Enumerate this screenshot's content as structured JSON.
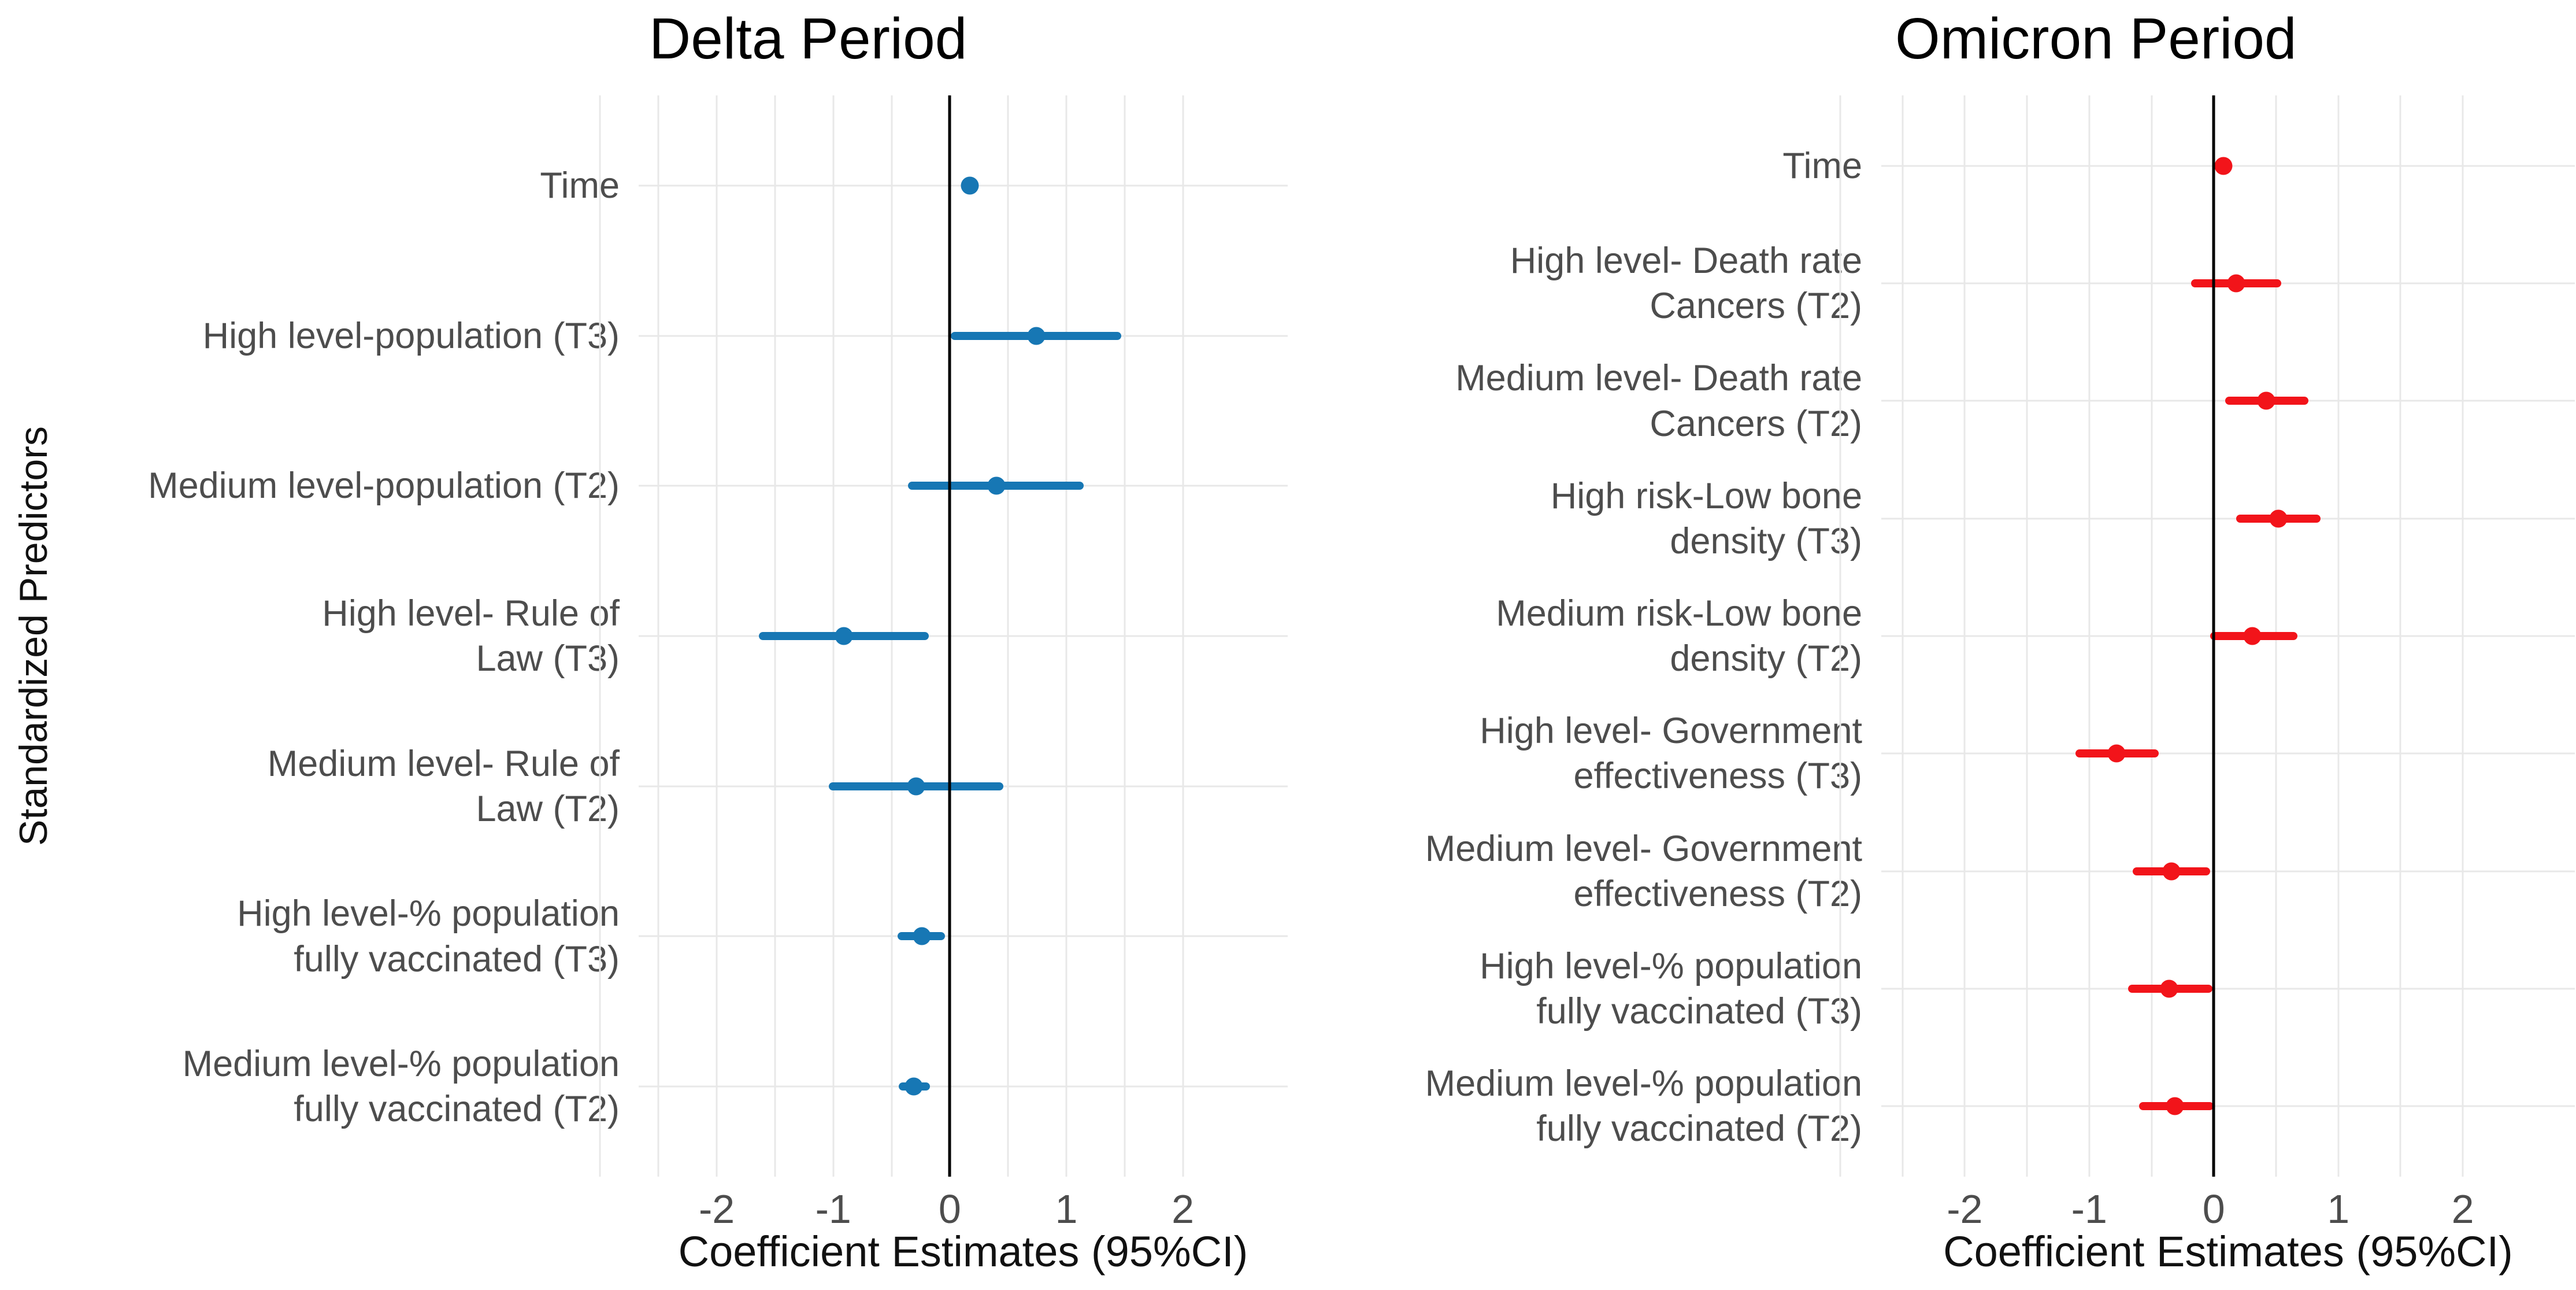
{
  "figure": {
    "background": "#ffffff"
  },
  "style": {
    "grid_color": "#e8e8e8",
    "zero_line_color": "#000000",
    "label_color": "#4d4d4d",
    "tick_color": "#4d4d4d",
    "title_color": "#000000",
    "delta_point_color": "#1777b4",
    "omicron_point_color": "#f2141a"
  },
  "chart_data": [
    {
      "type": "scatter",
      "variant": "forest-plot",
      "title": "Delta Period",
      "xlabel": "Coefficient Estimates (95%CI)",
      "ylabel": "Standardized Predictors",
      "xlim": [
        -2.67,
        2.9
      ],
      "xticks": [
        -2,
        -1,
        0,
        1,
        2
      ],
      "minor_grid_step": 0.5,
      "grid": true,
      "vline_x": 0,
      "legend": "none",
      "point_color": "#1777b4",
      "rows": [
        {
          "label": "Time",
          "estimate": 0.17,
          "ci_low": 0.12,
          "ci_high": 0.23
        },
        {
          "label": "High level-population (T3)",
          "estimate": 0.74,
          "ci_low": 0.01,
          "ci_high": 1.47
        },
        {
          "label": "Medium level-population (T2)",
          "estimate": 0.4,
          "ci_low": -0.36,
          "ci_high": 1.15
        },
        {
          "label": "High level- Rule of\nLaw (T3)",
          "estimate": -0.91,
          "ci_low": -1.64,
          "ci_high": -0.18
        },
        {
          "label": "Medium level- Rule of\nLaw (T2)",
          "estimate": -0.29,
          "ci_low": -1.04,
          "ci_high": 0.46
        },
        {
          "label": "High level-% population\nfully vaccinated (T3)",
          "estimate": -0.24,
          "ci_low": -0.45,
          "ci_high": -0.04
        },
        {
          "label": "Medium level-% population\nfully vaccinated (T2)",
          "estimate": -0.31,
          "ci_low": -0.44,
          "ci_high": -0.17
        }
      ]
    },
    {
      "type": "scatter",
      "variant": "forest-plot",
      "title": "Omicron Period",
      "xlabel": "Coefficient Estimates (95%CI)",
      "ylabel": "",
      "xlim": [
        -2.67,
        2.9
      ],
      "xticks": [
        -2,
        -1,
        0,
        1,
        2
      ],
      "minor_grid_step": 0.5,
      "grid": true,
      "vline_x": 0,
      "legend": "none",
      "point_color": "#f2141a",
      "rows": [
        {
          "label": "Time",
          "estimate": 0.08,
          "ci_low": 0.03,
          "ci_high": 0.14
        },
        {
          "label": "High level- Death rate\nCancers (T2)",
          "estimate": 0.18,
          "ci_low": -0.18,
          "ci_high": 0.54
        },
        {
          "label": "Medium level- Death rate\nCancers (T2)",
          "estimate": 0.42,
          "ci_low": 0.09,
          "ci_high": 0.76
        },
        {
          "label": "High risk-Low bone\ndensity (T3)",
          "estimate": 0.52,
          "ci_low": 0.18,
          "ci_high": 0.86
        },
        {
          "label": "Medium risk-Low bone\ndensity (T2)",
          "estimate": 0.31,
          "ci_low": -0.03,
          "ci_high": 0.67
        },
        {
          "label": "High level- Government\neffectiveness (T3)",
          "estimate": -0.78,
          "ci_low": -1.11,
          "ci_high": -0.44
        },
        {
          "label": "Medium level- Government\neffectiveness (T2)",
          "estimate": -0.34,
          "ci_low": -0.65,
          "ci_high": -0.03
        },
        {
          "label": "High level-% population\nfully vaccinated (T3)",
          "estimate": -0.36,
          "ci_low": -0.69,
          "ci_high": -0.01
        },
        {
          "label": "Medium level-% population\nfully vaccinated (T2)",
          "estimate": -0.31,
          "ci_low": -0.6,
          "ci_high": 0.0
        }
      ]
    }
  ]
}
